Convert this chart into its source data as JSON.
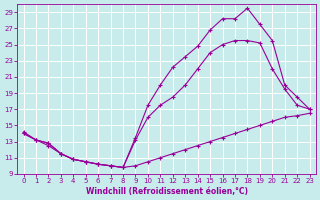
{
  "xlabel": "Windchill (Refroidissement éolien,°C)",
  "bg_color": "#c8ecec",
  "grid_color": "#ffffff",
  "line_color": "#990099",
  "xlim": [
    -0.5,
    23.5
  ],
  "ylim": [
    9,
    30
  ],
  "xticks": [
    0,
    1,
    2,
    3,
    4,
    5,
    6,
    7,
    8,
    9,
    10,
    11,
    12,
    13,
    14,
    15,
    16,
    17,
    18,
    19,
    20,
    21,
    22,
    23
  ],
  "yticks": [
    9,
    11,
    13,
    15,
    17,
    19,
    21,
    23,
    25,
    27,
    29
  ],
  "series1_x": [
    0,
    1,
    2,
    3,
    4,
    5,
    6,
    7,
    8,
    9,
    10,
    11,
    12,
    13,
    14,
    15,
    16,
    17,
    18,
    19,
    20,
    21,
    22,
    23
  ],
  "series1_y": [
    14.0,
    13.2,
    12.8,
    11.5,
    10.8,
    10.5,
    10.2,
    10.0,
    9.8,
    10.0,
    10.5,
    11.0,
    11.5,
    12.0,
    12.5,
    13.0,
    13.5,
    14.0,
    14.5,
    15.0,
    15.5,
    16.0,
    16.2,
    16.5
  ],
  "series2_x": [
    0,
    1,
    2,
    3,
    4,
    5,
    6,
    7,
    8,
    9,
    10,
    11,
    12,
    13,
    14,
    15,
    16,
    17,
    18,
    19,
    20,
    21,
    22,
    23
  ],
  "series2_y": [
    14.0,
    13.2,
    12.8,
    11.5,
    10.8,
    10.5,
    10.2,
    10.0,
    9.8,
    13.2,
    16.0,
    17.5,
    18.5,
    20.0,
    22.0,
    24.0,
    25.0,
    25.5,
    25.5,
    25.2,
    22.0,
    19.5,
    17.5,
    17.0
  ],
  "series3_x": [
    0,
    1,
    2,
    3,
    4,
    5,
    6,
    7,
    8,
    9,
    10,
    11,
    12,
    13,
    14,
    15,
    16,
    17,
    18,
    19,
    20,
    21,
    22,
    23
  ],
  "series3_y": [
    14.2,
    13.2,
    12.5,
    11.5,
    10.8,
    10.5,
    10.2,
    10.0,
    9.8,
    13.5,
    17.5,
    20.0,
    22.2,
    23.5,
    24.8,
    26.8,
    28.2,
    28.2,
    29.5,
    27.5,
    25.5,
    20.0,
    18.5,
    17.0
  ]
}
